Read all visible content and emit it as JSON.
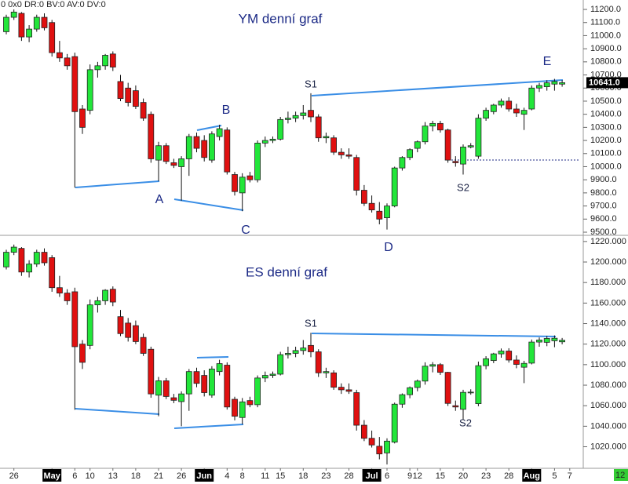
{
  "status_text": "0 0x0 DR:0 BV:0 AV:0 DV:0",
  "badge": "12",
  "chart_data": [
    {
      "type": "candlestick",
      "title": "YM denní graf",
      "up_color": "#22e63a",
      "down_color": "#e01010",
      "open": [
        11030,
        11140,
        11170,
        10990,
        11050,
        11140,
        11100,
        10870,
        10830,
        10840,
        10440,
        10430,
        10740,
        10770,
        10860,
        10650,
        10600,
        10580,
        10490,
        10400,
        10050,
        10160,
        10030,
        10000,
        10060,
        10230,
        10200,
        10050,
        10230,
        10280,
        9940,
        9800,
        9930,
        9900,
        10180,
        10200,
        10210,
        10360,
        10370,
        10390,
        10430,
        10380,
        10220,
        10220,
        10110,
        10090,
        10070,
        9820,
        9720,
        9660,
        9610,
        9700,
        9990,
        10070,
        10140,
        10190,
        10310,
        10330,
        10280,
        10040,
        10020,
        10150,
        10080,
        10370,
        10420,
        10470,
        10500,
        10440,
        10400,
        10440,
        10600,
        10610,
        10630,
        10630,
        null
      ],
      "high": [
        11160,
        11200,
        11180,
        11080,
        11160,
        11170,
        11120,
        10960,
        10860,
        10870,
        10470,
        10780,
        10800,
        10860,
        10880,
        10700,
        10640,
        10620,
        10520,
        10420,
        10190,
        10180,
        10060,
        10080,
        10250,
        10260,
        10240,
        10270,
        10320,
        10300,
        9960,
        9950,
        9960,
        10200,
        10230,
        10230,
        10380,
        10420,
        10420,
        10470,
        10560,
        10400,
        10260,
        10240,
        10140,
        10140,
        10090,
        9860,
        9780,
        9730,
        9720,
        10000,
        10080,
        10140,
        10200,
        10340,
        10350,
        10350,
        10290,
        10080,
        10170,
        10180,
        10400,
        10450,
        10480,
        10520,
        10530,
        10480,
        10450,
        10620,
        10640,
        10660,
        10670,
        10660,
        null
      ],
      "low": [
        11010,
        11120,
        10960,
        10950,
        11030,
        11040,
        10840,
        10800,
        10740,
        9840,
        10250,
        10400,
        10680,
        10740,
        10730,
        10500,
        10460,
        10440,
        10350,
        10030,
        9890,
        10020,
        9990,
        9740,
        9930,
        10110,
        10040,
        10030,
        10200,
        9940,
        9780,
        9660,
        9880,
        9880,
        10150,
        10180,
        10200,
        10330,
        10340,
        10360,
        10340,
        10190,
        10180,
        10090,
        10060,
        10060,
        9780,
        9700,
        9650,
        9560,
        9520,
        9690,
        9970,
        10050,
        10110,
        10170,
        10270,
        10260,
        10030,
        10000,
        9940,
        10140,
        10060,
        10350,
        10400,
        10450,
        10420,
        10380,
        10280,
        10430,
        10570,
        10580,
        10580,
        10610,
        null
      ],
      "close": [
        11140,
        11180,
        10990,
        11050,
        11140,
        11060,
        10870,
        10830,
        10770,
        10420,
        10300,
        10740,
        10770,
        10850,
        10760,
        10520,
        10490,
        10460,
        10370,
        10060,
        10160,
        10040,
        10010,
        10060,
        10230,
        10140,
        10070,
        10250,
        10290,
        9960,
        9810,
        9920,
        9900,
        10180,
        10200,
        10210,
        10360,
        10370,
        10390,
        10410,
        10380,
        10220,
        10230,
        10110,
        10090,
        10080,
        9820,
        9720,
        9670,
        9600,
        9700,
        9990,
        10070,
        10130,
        10190,
        10310,
        10330,
        10280,
        10050,
        10030,
        10150,
        10160,
        10370,
        10430,
        10470,
        10500,
        10440,
        10410,
        10430,
        10600,
        10620,
        10640,
        10650,
        10641,
        null
      ],
      "ylim": [
        9476,
        11272
      ],
      "yticks": [
        {
          "value": 9500,
          "label": "9500.0"
        },
        {
          "value": 9600,
          "label": "9600.0"
        },
        {
          "value": 9700,
          "label": "9700.0"
        },
        {
          "value": 9800,
          "label": "9800.0"
        },
        {
          "value": 9900,
          "label": "9900.0"
        },
        {
          "value": 10000,
          "label": "10000.0"
        },
        {
          "value": 10100,
          "label": "10100.0"
        },
        {
          "value": 10200,
          "label": "10200.0"
        },
        {
          "value": 10300,
          "label": "10300.0"
        },
        {
          "value": 10400,
          "label": "10400.0"
        },
        {
          "value": 10500,
          "label": "10500.0"
        },
        {
          "value": 10600,
          "label": "10600.0"
        },
        {
          "value": 10700,
          "label": "10700.0"
        },
        {
          "value": 10800,
          "label": "10800.0"
        },
        {
          "value": 10900,
          "label": "10900.0"
        },
        {
          "value": 11000,
          "label": "11000.0"
        },
        {
          "value": 11100,
          "label": "11100.0"
        },
        {
          "value": 11200,
          "label": "11200.0"
        }
      ],
      "last_price": {
        "value": 10641,
        "label": "10641.0"
      },
      "annotations": [
        "S1",
        "B",
        "A",
        "C",
        "D",
        "E",
        "S2"
      ]
    },
    {
      "type": "candlestick",
      "title": "ES denní graf",
      "up_color": "#22e63a",
      "down_color": "#e01010",
      "categories": [
        null,
        "26",
        null,
        null,
        null,
        null,
        "May",
        null,
        null,
        "6",
        null,
        "10",
        null,
        null,
        "13",
        null,
        null,
        "18",
        null,
        null,
        "21",
        null,
        null,
        "26",
        null,
        null,
        "Jun",
        null,
        null,
        "4",
        null,
        "8",
        null,
        null,
        "11",
        null,
        "15",
        null,
        null,
        "18",
        null,
        null,
        "23",
        null,
        null,
        "28",
        null,
        null,
        "Jul",
        null,
        "6",
        null,
        null,
        "9",
        "12",
        null,
        null,
        "15",
        null,
        null,
        "20",
        null,
        null,
        "23",
        null,
        null,
        "28",
        null,
        null,
        "Aug",
        null,
        null,
        "5",
        null,
        "7"
      ],
      "open": [
        1195.25,
        1209.5,
        1213.25,
        1190.25,
        1198,
        1209.5,
        1204.25,
        1175,
        1169.75,
        1171,
        1120,
        1118.75,
        1158.25,
        1162.25,
        1173.5,
        1146.75,
        1140.5,
        1138,
        1126.5,
        1115,
        1070.25,
        1084.25,
        1067.75,
        1064,
        1071.5,
        1093.25,
        1089.5,
        1070.25,
        1093.25,
        1099.5,
        1066.25,
        1048.5,
        1065,
        1061,
        1087,
        1089.5,
        1090.75,
        1109.75,
        1111,
        1113.75,
        1118.75,
        1112.5,
        1092,
        1092,
        1078,
        1075.5,
        1072.75,
        1041,
        1028.25,
        1020.5,
        1014,
        1024.5,
        1061.5,
        1070.75,
        1077.75,
        1084,
        1098.5,
        1100,
        1092.5,
        1060,
        1056.5,
        1073,
        1062,
        1099,
        1104,
        1110.5,
        1113.25,
        1104.5,
        1097.5,
        1101.5,
        1122,
        1121.75,
        1123.25,
        1122.25,
        null
      ],
      "high": [
        1212,
        1217,
        1214.5,
        1201.75,
        1212,
        1213.25,
        1206.75,
        1186.5,
        1173.5,
        1175,
        1124,
        1163.5,
        1166,
        1173.5,
        1176.25,
        1153.25,
        1145.5,
        1143,
        1130.25,
        1117.5,
        1088,
        1087,
        1071.5,
        1074,
        1095.75,
        1097,
        1094.5,
        1098.5,
        1104.75,
        1102.25,
        1068.75,
        1067.5,
        1068.75,
        1089.5,
        1093.25,
        1093.25,
        1112.5,
        1117.5,
        1117.5,
        1124,
        1131,
        1115,
        1097,
        1094.5,
        1081.75,
        1081.75,
        1075.5,
        1046,
        1035.75,
        1029.5,
        1028.25,
        1063,
        1072,
        1078.75,
        1085.5,
        1102.25,
        1102.5,
        1101.5,
        1093,
        1065,
        1075.5,
        1076,
        1103,
        1108.25,
        1111.5,
        1115.75,
        1116,
        1109,
        1103.75,
        1124.5,
        1126.5,
        1128,
        1128.5,
        1126,
        null
      ],
      "low": [
        1192.75,
        1206.75,
        1186.5,
        1185,
        1195.25,
        1196.5,
        1171,
        1166,
        1158.25,
        1056,
        1095.75,
        1115,
        1150.75,
        1158.25,
        1157,
        1127.75,
        1122.5,
        1120,
        1108.5,
        1067.75,
        1049.75,
        1066.5,
        1062.5,
        1040,
        1055,
        1078,
        1069,
        1067.75,
        1089.5,
        1056.25,
        1045.75,
        1042,
        1058.5,
        1058.5,
        1083,
        1087,
        1089.5,
        1106,
        1107.25,
        1109.75,
        1107.25,
        1088,
        1087,
        1075.5,
        1071.5,
        1071.5,
        1035.75,
        1025.5,
        1019.25,
        1007.75,
        1002.75,
        1023.25,
        1058,
        1067.25,
        1074,
        1080.5,
        1092.5,
        1090,
        1059.75,
        1055,
        1046.25,
        1070.75,
        1059.5,
        1095.5,
        1101.5,
        1106.75,
        1102,
        1096.5,
        1082,
        1100.25,
        1117.5,
        1118,
        1117,
        1119.75,
        null
      ],
      "close": [
        1209.5,
        1214.5,
        1190.25,
        1198,
        1209.5,
        1199.25,
        1175,
        1169.75,
        1162.25,
        1117.5,
        1102.25,
        1158.25,
        1162.25,
        1172.5,
        1161,
        1130.25,
        1126.5,
        1122.5,
        1111,
        1071.5,
        1084.25,
        1069,
        1065.25,
        1071.5,
        1093.25,
        1081.75,
        1072.75,
        1095.75,
        1101,
        1058.75,
        1049.75,
        1063.75,
        1061,
        1087,
        1089.5,
        1090.75,
        1109.75,
        1111,
        1113.75,
        1116.25,
        1112.5,
        1092,
        1093.25,
        1078,
        1075.5,
        1074,
        1041,
        1028.25,
        1021.75,
        1013,
        1025.5,
        1061.5,
        1070.75,
        1077.5,
        1084,
        1098.5,
        1100,
        1092.5,
        1062.25,
        1058.75,
        1073,
        1073.25,
        1099,
        1105.75,
        1110.5,
        1113.25,
        1104.5,
        1100.25,
        1101.25,
        1122,
        1124,
        1125.5,
        1125.75,
        1123.75,
        null
      ],
      "ylim": [
        999,
        1226
      ],
      "yticks": [
        {
          "value": 1020,
          "label": "1020.000"
        },
        {
          "value": 1040,
          "label": "1040.000"
        },
        {
          "value": 1060,
          "label": "1060.000"
        },
        {
          "value": 1080,
          "label": "1080.000"
        },
        {
          "value": 1100,
          "label": "1100.000"
        },
        {
          "value": 1120,
          "label": "1120.000"
        },
        {
          "value": 1140,
          "label": "1140.000"
        },
        {
          "value": 1160,
          "label": "1160.000"
        },
        {
          "value": 1180,
          "label": "1180.000"
        },
        {
          "value": 1200,
          "label": "1200.000"
        },
        {
          "value": 1220,
          "label": "1220.000"
        }
      ],
      "annotations": [
        "S1",
        "S2"
      ]
    }
  ]
}
